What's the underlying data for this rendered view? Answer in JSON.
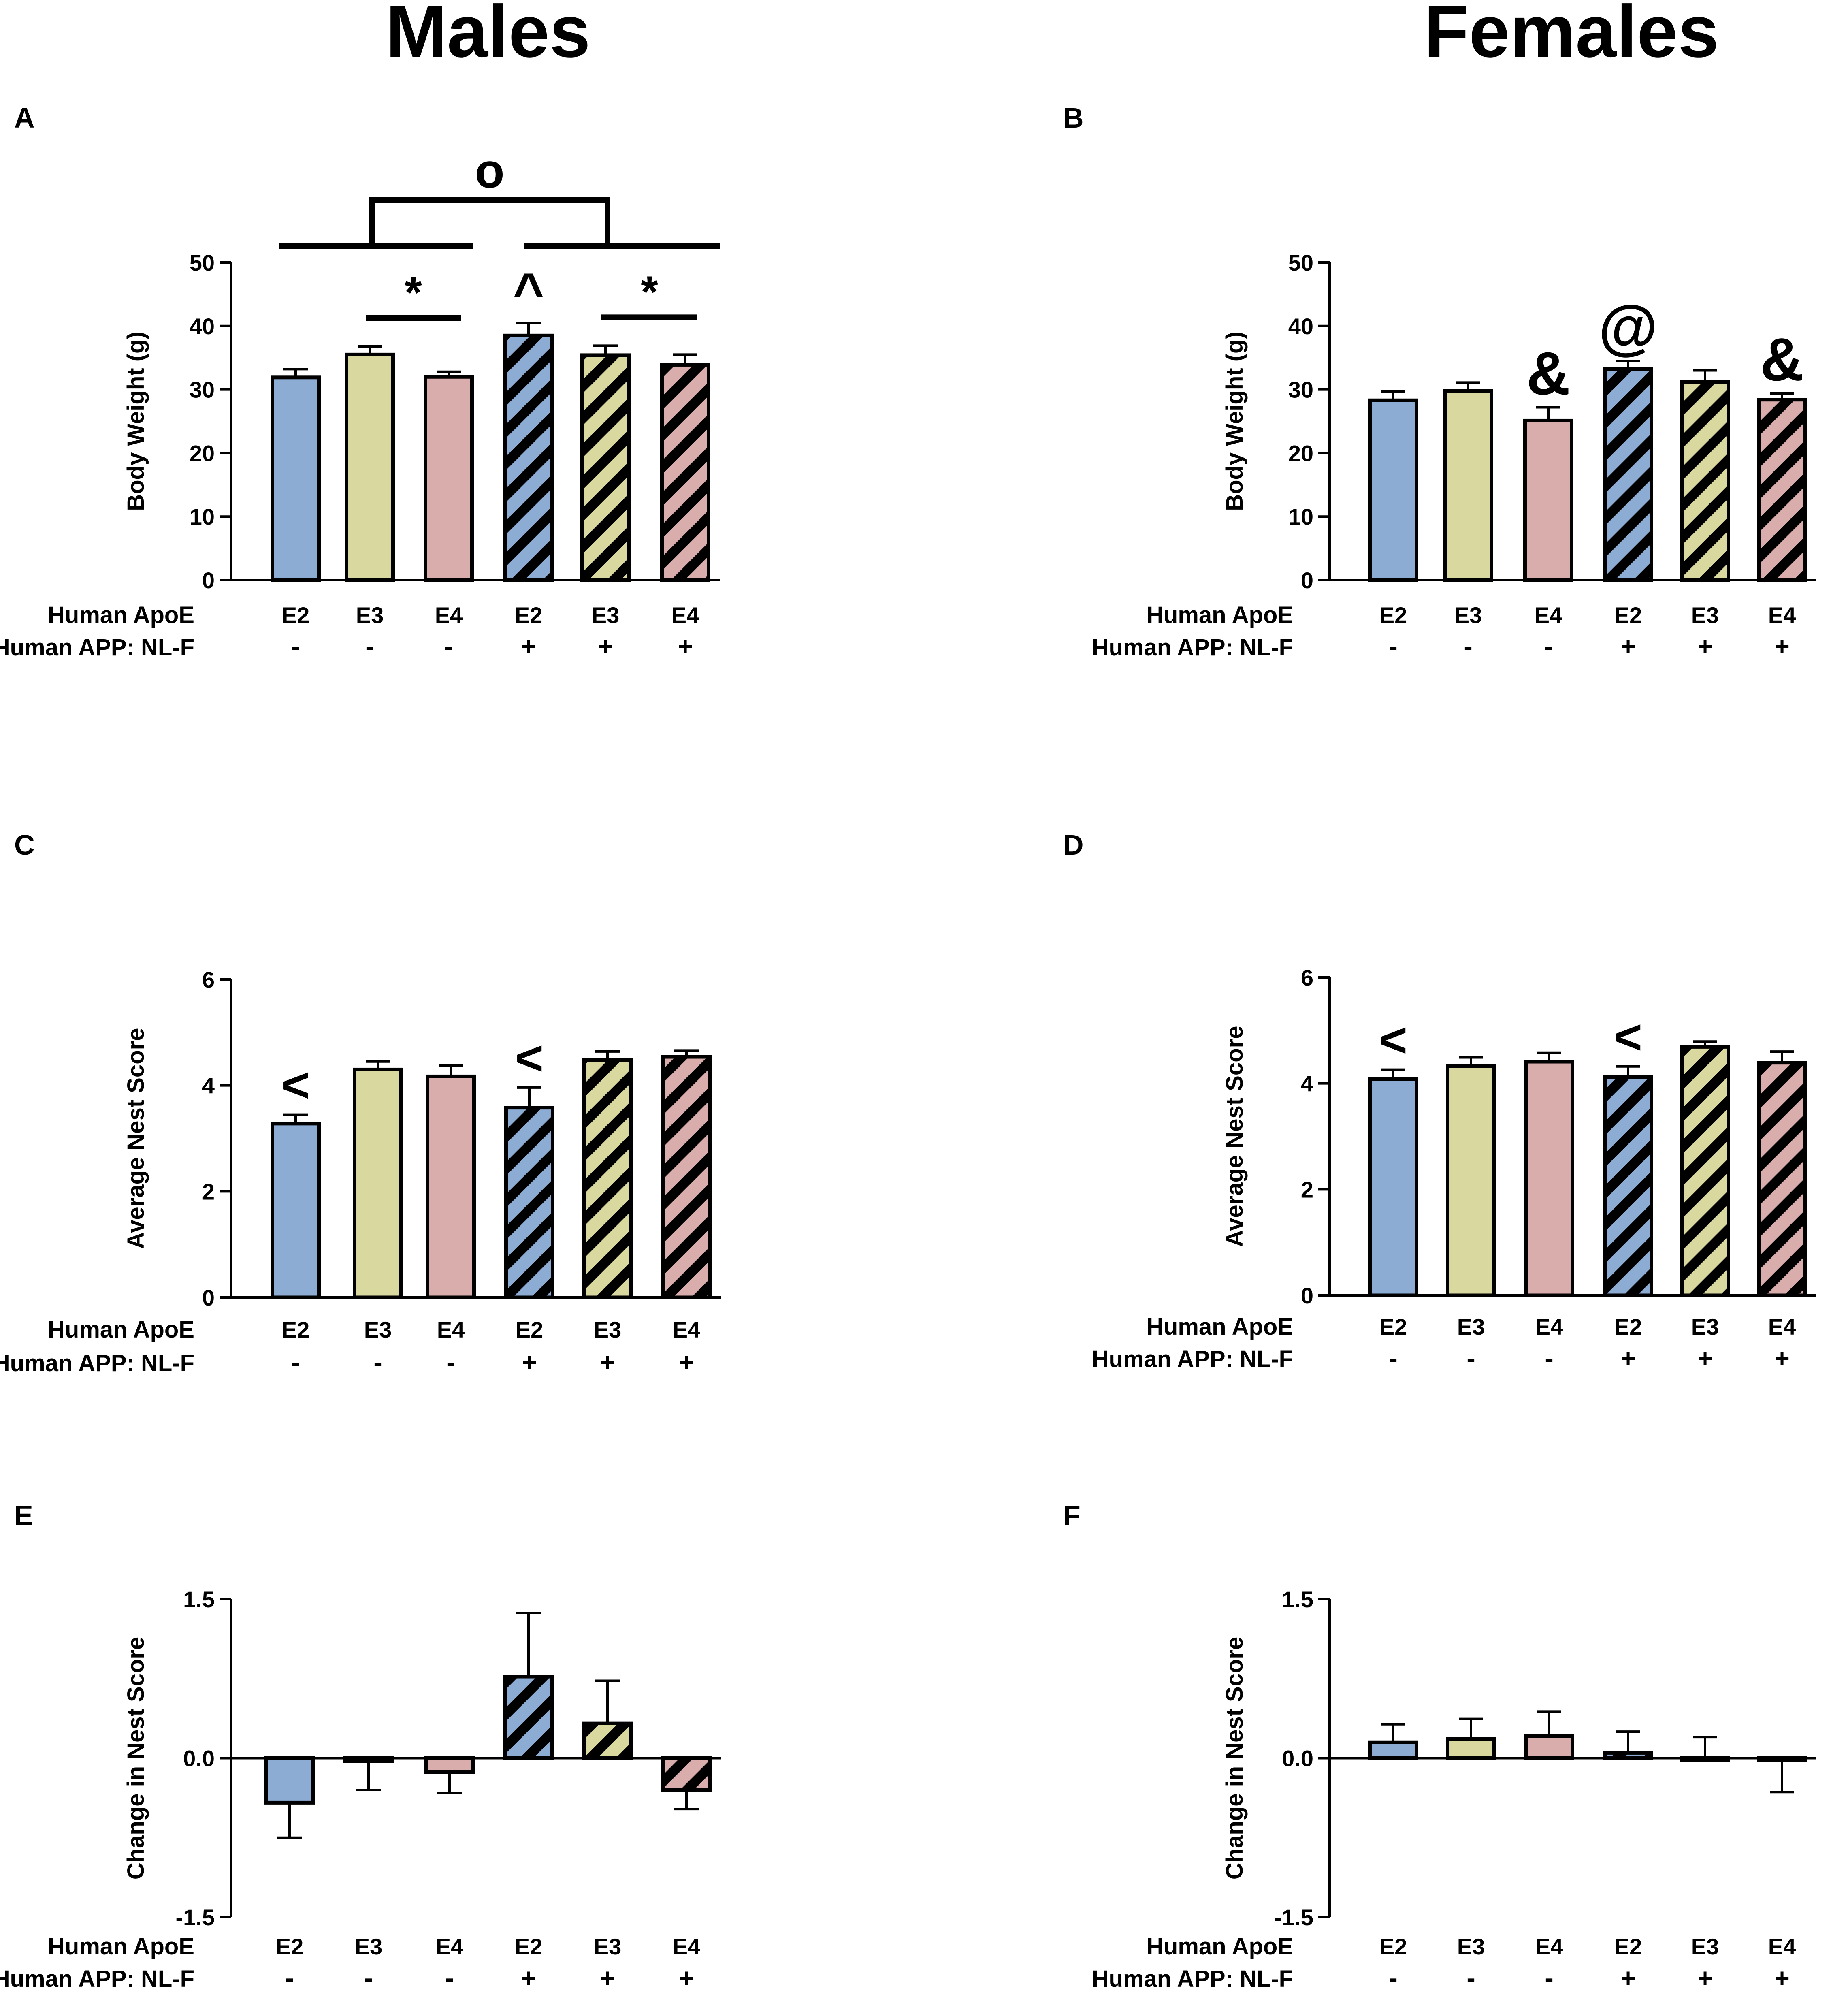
{
  "figure": {
    "col_titles": [
      "Males",
      "Females"
    ],
    "row_labels": {
      "apoe": "Human ApoE",
      "app": "Human APP: NL-F"
    }
  },
  "colors": {
    "E2": "#8dacd3",
    "E3": "#d9d89f",
    "E4": "#d9adab",
    "stroke": "#000000"
  },
  "chart_data": [
    {
      "panel": "A",
      "sex": "Males",
      "type": "bar",
      "ylabel": "Body Weight (g)",
      "ylim": [
        0,
        50
      ],
      "yticks": [
        "0",
        "10",
        "20",
        "30",
        "40",
        "50"
      ],
      "ytick_values": [
        0,
        10,
        20,
        30,
        40,
        50
      ],
      "apoe": [
        "E2",
        "E3",
        "E4",
        "E2",
        "E3",
        "E4"
      ],
      "app": [
        "-",
        "-",
        "-",
        "+",
        "+",
        "+"
      ],
      "values": [
        31.9,
        35.5,
        32.0,
        38.5,
        35.4,
        33.9
      ],
      "errors": [
        1.3,
        1.3,
        0.8,
        2.0,
        1.5,
        1.6
      ],
      "annotations": [
        {
          "type": "bracket",
          "from": 1,
          "to": 2,
          "label": "*"
        },
        {
          "type": "bracket",
          "from": 4,
          "to": 5,
          "label": "*"
        },
        {
          "type": "mark",
          "bar": 3,
          "label": "^"
        },
        {
          "type": "group",
          "groups": [
            [
              0,
              2
            ],
            [
              3,
              5
            ]
          ],
          "label": "o"
        }
      ]
    },
    {
      "panel": "B",
      "sex": "Females",
      "type": "bar",
      "ylabel": "Body Weight (g)",
      "ylim": [
        0,
        50
      ],
      "yticks": [
        "0",
        "10",
        "20",
        "30",
        "40",
        "50"
      ],
      "ytick_values": [
        0,
        10,
        20,
        30,
        40,
        50
      ],
      "apoe": [
        "E2",
        "E3",
        "E4",
        "E2",
        "E3",
        "E4"
      ],
      "app": [
        "-",
        "-",
        "-",
        "+",
        "+",
        "+"
      ],
      "values": [
        28.3,
        29.8,
        25.1,
        33.2,
        31.2,
        28.4
      ],
      "errors": [
        1.4,
        1.3,
        2.1,
        1.3,
        1.8,
        1.0
      ],
      "annotations": [
        {
          "type": "mark",
          "bar": 2,
          "label": "&"
        },
        {
          "type": "mark",
          "bar": 3,
          "label": "@"
        },
        {
          "type": "mark",
          "bar": 5,
          "label": "&"
        }
      ]
    },
    {
      "panel": "C",
      "sex": "Males",
      "type": "bar",
      "ylabel": "Average Nest Score",
      "ylim": [
        0,
        6
      ],
      "yticks": [
        "0",
        "2",
        "4",
        "6"
      ],
      "ytick_values": [
        0,
        2,
        4,
        6
      ],
      "apoe": [
        "E2",
        "E3",
        "E4",
        "E2",
        "E3",
        "E4"
      ],
      "app": [
        "-",
        "-",
        "-",
        "+",
        "+",
        "+"
      ],
      "values": [
        3.28,
        4.3,
        4.17,
        3.58,
        4.48,
        4.54
      ],
      "errors": [
        0.17,
        0.15,
        0.21,
        0.38,
        0.16,
        0.12
      ],
      "annotations": [
        {
          "type": "mark",
          "bar": 0,
          "label": "<"
        },
        {
          "type": "mark",
          "bar": 3,
          "label": "<"
        }
      ]
    },
    {
      "panel": "D",
      "sex": "Females",
      "type": "bar",
      "ylabel": "Average Nest Score",
      "ylim": [
        0,
        6
      ],
      "yticks": [
        "0",
        "2",
        "4",
        "6"
      ],
      "ytick_values": [
        0,
        2,
        4,
        6
      ],
      "apoe": [
        "E2",
        "E3",
        "E4",
        "E2",
        "E3",
        "E4"
      ],
      "app": [
        "-",
        "-",
        "-",
        "+",
        "+",
        "+"
      ],
      "values": [
        4.08,
        4.33,
        4.41,
        4.12,
        4.69,
        4.39
      ],
      "errors": [
        0.18,
        0.16,
        0.17,
        0.2,
        0.1,
        0.21
      ],
      "annotations": [
        {
          "type": "mark",
          "bar": 0,
          "label": "<"
        },
        {
          "type": "mark",
          "bar": 3,
          "label": "<"
        }
      ]
    },
    {
      "panel": "E",
      "sex": "Males",
      "type": "bar",
      "ylabel": "Change in Nest Score",
      "ylim": [
        -1.5,
        1.5
      ],
      "yticks": [
        "-1.5",
        "0.0",
        "1.5"
      ],
      "ytick_values": [
        -1.5,
        0,
        1.5
      ],
      "apoe": [
        "E2",
        "E3",
        "E4",
        "E2",
        "E3",
        "E4"
      ],
      "app": [
        "-",
        "-",
        "-",
        "+",
        "+",
        "+"
      ],
      "values": [
        -0.42,
        -0.03,
        -0.13,
        0.77,
        0.33,
        -0.3
      ],
      "errors": [
        0.33,
        0.27,
        0.2,
        0.6,
        0.4,
        0.18
      ],
      "annotations": []
    },
    {
      "panel": "F",
      "sex": "Females",
      "type": "bar",
      "ylabel": "Change in Nest Score",
      "ylim": [
        -1.5,
        1.5
      ],
      "yticks": [
        "-1.5",
        "0.0",
        "1.5"
      ],
      "ytick_values": [
        -1.5,
        0,
        1.5
      ],
      "apoe": [
        "E2",
        "E3",
        "E4",
        "E2",
        "E3",
        "E4"
      ],
      "app": [
        "-",
        "-",
        "-",
        "+",
        "+",
        "+"
      ],
      "values": [
        0.15,
        0.18,
        0.21,
        0.05,
        0.0,
        -0.02
      ],
      "errors": [
        0.17,
        0.19,
        0.23,
        0.2,
        0.2,
        0.3
      ],
      "annotations": []
    }
  ]
}
